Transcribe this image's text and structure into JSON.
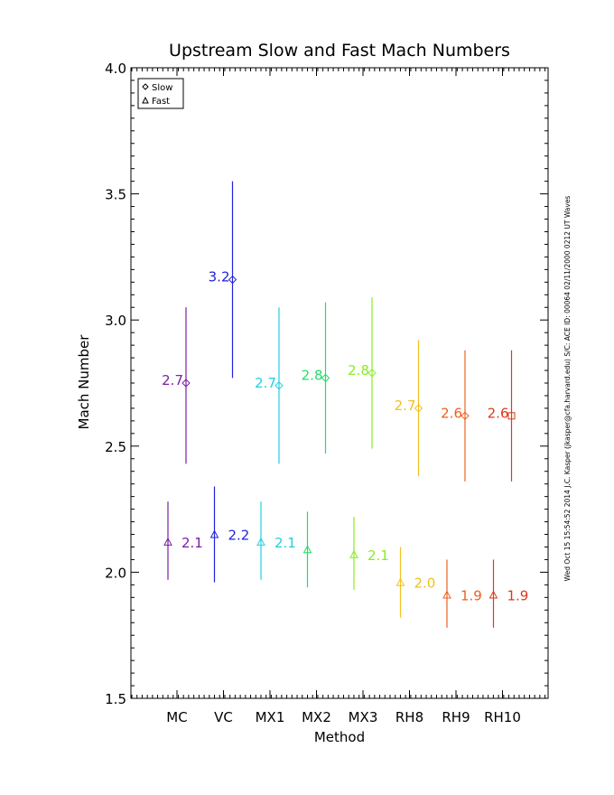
{
  "chart_data": {
    "type": "scatter",
    "title": "Upstream Slow and Fast Mach Numbers",
    "xlabel": "Method",
    "ylabel": "Mach Number",
    "ylim": [
      1.5,
      4.0
    ],
    "yticks": [
      "1.5",
      "2.0",
      "2.5",
      "3.0",
      "3.5",
      "4.0"
    ],
    "categories": [
      "MC",
      "VC",
      "MX1",
      "MX2",
      "MX3",
      "RH8",
      "RH9",
      "RH10"
    ],
    "category_colors": [
      "#7b1fa2",
      "#2222dd",
      "#22d0e0",
      "#22dd66",
      "#88ee22",
      "#f0c020",
      "#ee6020",
      "#dd3a1a"
    ],
    "legend": {
      "position": "top-left",
      "entries": [
        {
          "symbol": "diamond",
          "label": "Slow"
        },
        {
          "symbol": "triangle",
          "label": "Fast"
        }
      ]
    },
    "series": [
      {
        "name": "Slow",
        "values": [
          2.75,
          3.16,
          2.74,
          2.77,
          2.79,
          2.65,
          2.62,
          2.62
        ],
        "err_low": [
          2.43,
          2.77,
          2.43,
          2.47,
          2.49,
          2.38,
          2.36,
          2.36
        ],
        "err_high": [
          3.05,
          3.55,
          3.05,
          3.07,
          3.09,
          2.92,
          2.88,
          2.88
        ],
        "value_labels": [
          "2.7",
          "3.2",
          "2.7",
          "2.8",
          "2.8",
          "2.7",
          "2.6",
          "2.6"
        ]
      },
      {
        "name": "Fast",
        "values": [
          2.12,
          2.15,
          2.12,
          2.09,
          2.07,
          1.96,
          1.91,
          1.91
        ],
        "err_low": [
          1.97,
          1.96,
          1.97,
          1.94,
          1.93,
          1.82,
          1.78,
          1.78
        ],
        "err_high": [
          2.28,
          2.34,
          2.28,
          2.24,
          2.22,
          2.1,
          2.05,
          2.05
        ],
        "value_labels": [
          "2.1",
          "2.2",
          "2.1",
          "",
          "2.1",
          "2.0",
          "1.9",
          "1.9"
        ]
      }
    ],
    "side_note": "Wed Oct 15 15:54:52 2014   J.C. Kasper (jkasper@cfa.harvard.edu)   S/C: ACE ID: 00064 02/11/2000  0212 UT Waves"
  }
}
